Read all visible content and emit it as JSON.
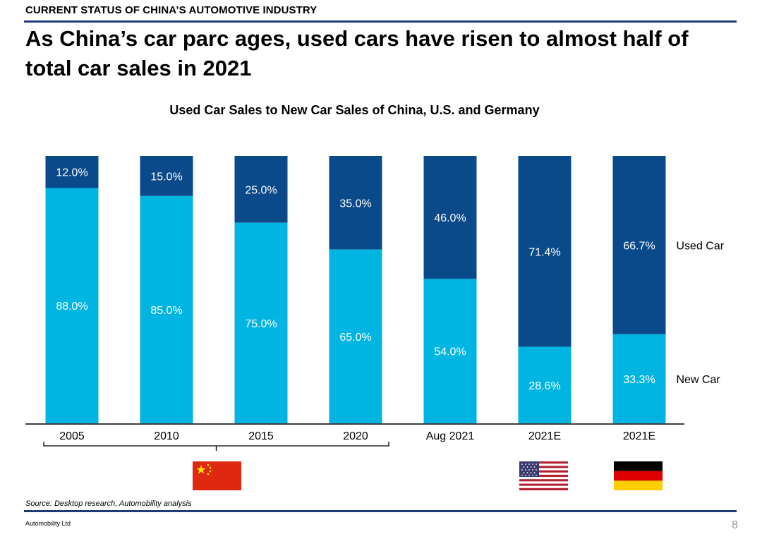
{
  "header": {
    "kicker": "CURRENT STATUS OF CHINA’S AUTOMOTIVE INDUSTRY",
    "headline": "As China’s car parc ages, used cars have risen to almost half of total car sales in 2021"
  },
  "chart_data": {
    "type": "bar",
    "stacked": true,
    "percent_stacked": true,
    "title": "Used Car Sales to New Car Sales of China, U.S. and Germany",
    "categories": [
      "2005",
      "2010",
      "2015",
      "2020",
      "Aug 2021",
      "2021E",
      "2021E"
    ],
    "series": [
      {
        "name": "New Car",
        "color": "#00b5e2",
        "values": [
          88.0,
          85.0,
          75.0,
          65.0,
          54.0,
          28.6,
          33.3
        ],
        "labels": [
          "88.0%",
          "85.0%",
          "75.0%",
          "65.0%",
          "54.0%",
          "28.6%",
          "33.3%"
        ]
      },
      {
        "name": "Used Car",
        "color": "#0a4a8b",
        "values": [
          12.0,
          15.0,
          25.0,
          35.0,
          46.0,
          71.4,
          66.7
        ],
        "labels": [
          "12.0%",
          "15.0%",
          "25.0%",
          "35.0%",
          "46.0%",
          "71.4%",
          "66.7%"
        ]
      }
    ],
    "legend_placement": "right, inline with segments",
    "ylim": [
      0,
      100
    ],
    "grid": false,
    "group_bracket": "2005–2020",
    "flags": [
      {
        "country": "China",
        "icon": "china-flag-icon"
      },
      {
        "country": "U.S.",
        "icon": "us-flag-icon"
      },
      {
        "country": "Germany",
        "icon": "germany-flag-icon"
      }
    ]
  },
  "footer": {
    "source": "Source: Desktop research, Automobility analysis",
    "company": "Automobility Ltd",
    "page": "8"
  },
  "colors": {
    "accent_rule": "#1f3b73",
    "used": "#0a4a8b",
    "new": "#00b5e2"
  }
}
